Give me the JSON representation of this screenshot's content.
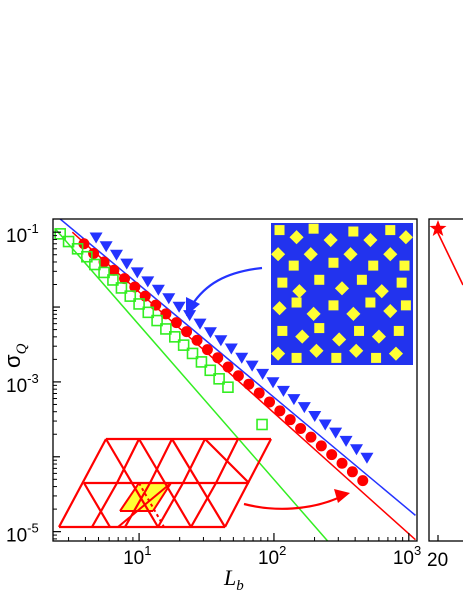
{
  "colors": {
    "blue": "#2433ff",
    "red": "#ff0000",
    "green": "#33ee22",
    "yellow": "#ffff33",
    "tile_blue": "#2233ee"
  },
  "chart_data": [
    {
      "type": "scatter",
      "xlabel": "L",
      "xlabel_sub": "b",
      "ylabel": "σ",
      "ylabel_sub": "Q",
      "xscale": "log",
      "yscale": "log",
      "xlim": [
        2.3,
        1150
      ],
      "ylim": [
        7.5e-06,
        0.15
      ],
      "x_ticks": [
        {
          "value": 10,
          "base": "10",
          "exp": "1"
        },
        {
          "value": 100,
          "base": "10",
          "exp": "2"
        },
        {
          "value": 1000,
          "base": "10",
          "exp": "3"
        }
      ],
      "y_ticks": [
        {
          "value": 0.1,
          "base": "10",
          "exp": "-1"
        },
        {
          "value": 0.001,
          "base": "10",
          "exp": "-3"
        },
        {
          "value": 1e-05,
          "base": "10",
          "exp": "-5"
        }
      ],
      "grid": false,
      "series": [
        {
          "marker": "triangle-down",
          "color": "#2433ff",
          "points": [
            [
              4.8,
              0.085
            ],
            [
              5.7,
              0.065
            ],
            [
              6.8,
              0.05
            ],
            [
              8.1,
              0.038
            ],
            [
              9.7,
              0.029
            ],
            [
              11.6,
              0.022
            ],
            [
              13.9,
              0.017
            ],
            [
              16.6,
              0.0131
            ],
            [
              19.8,
              0.0101
            ],
            [
              23.7,
              0.0078
            ],
            [
              28.3,
              0.006
            ],
            [
              33.8,
              0.0046
            ],
            [
              40.4,
              0.0036
            ],
            [
              48.3,
              0.0028
            ],
            [
              57.7,
              0.0021
            ],
            [
              68.9,
              0.00165
            ],
            [
              82.4,
              0.00128
            ],
            [
              98.4,
              0.00099
            ],
            [
              117.6,
              0.00076
            ],
            [
              140.6,
              0.00059
            ],
            [
              168,
              0.00046
            ],
            [
              200.7,
              0.00035
            ],
            [
              240,
              0.00027
            ],
            [
              286.7,
              0.00021
            ],
            [
              342.6,
              0.000163
            ],
            [
              409.4,
              0.000126
            ],
            [
              489.3,
              9.7e-05
            ]
          ],
          "fit": [
            [
              2.6,
              0.15
            ],
            [
              1120,
              1.65e-05
            ]
          ]
        },
        {
          "marker": "circle",
          "color": "#ff0000",
          "points": [
            [
              3.9,
              0.07
            ],
            [
              4.6,
              0.052
            ],
            [
              5.5,
              0.04
            ],
            [
              6.5,
              0.031
            ],
            [
              7.8,
              0.024
            ],
            [
              9.3,
              0.0185
            ],
            [
              11.1,
              0.014
            ],
            [
              13.3,
              0.0106
            ],
            [
              15.8,
              0.0081
            ],
            [
              18.9,
              0.0062
            ],
            [
              22.5,
              0.0047
            ],
            [
              26.9,
              0.0036
            ],
            [
              32.1,
              0.0027
            ],
            [
              38.3,
              0.0021
            ],
            [
              45.7,
              0.00158
            ],
            [
              54.5,
              0.00121
            ],
            [
              65.1,
              0.00093
            ],
            [
              77.7,
              0.00071
            ],
            [
              92.7,
              0.00054
            ],
            [
              110.6,
              0.00041
            ],
            [
              132,
              0.000313
            ],
            [
              157.6,
              0.000239
            ],
            [
              188.1,
              0.000183
            ],
            [
              224.5,
              0.00014
            ],
            [
              268,
              0.000107
            ],
            [
              319.8,
              8.2e-05
            ],
            [
              381.7,
              6.3e-05
            ],
            [
              455.6,
              4.8e-05
            ]
          ],
          "fit": [
            [
              3.2,
              0.1
            ],
            [
              1120,
              7.8e-06
            ]
          ]
        },
        {
          "marker": "square-open",
          "color": "#33ee22",
          "points": [
            [
              2.6,
              0.095
            ],
            [
              3.0,
              0.075
            ],
            [
              3.5,
              0.06
            ],
            [
              4.1,
              0.047
            ],
            [
              4.7,
              0.037
            ],
            [
              5.5,
              0.029
            ],
            [
              6.4,
              0.023
            ],
            [
              7.4,
              0.018
            ],
            [
              8.6,
              0.014
            ],
            [
              10.0,
              0.011
            ],
            [
              11.7,
              0.0085
            ],
            [
              13.6,
              0.0066
            ],
            [
              15.8,
              0.0051
            ],
            [
              18.4,
              0.004
            ],
            [
              21.4,
              0.0031
            ],
            [
              24.9,
              0.0024
            ],
            [
              29.0,
              0.00185
            ],
            [
              33.7,
              0.00143
            ],
            [
              39.2,
              0.0011
            ],
            [
              45.6,
              0.00085
            ],
            [
              81.6,
              0.00027
            ]
          ],
          "fit": [
            [
              2.4,
              0.11
            ],
            [
              250,
              7.5e-06
            ]
          ]
        }
      ]
    },
    {
      "type": "scatter",
      "x_ticks": [
        {
          "value": 20,
          "label": "20"
        }
      ],
      "series": [
        {
          "marker": "star",
          "color": "#ff0000",
          "points": [
            [
              20,
              0.1
            ]
          ]
        }
      ]
    }
  ]
}
